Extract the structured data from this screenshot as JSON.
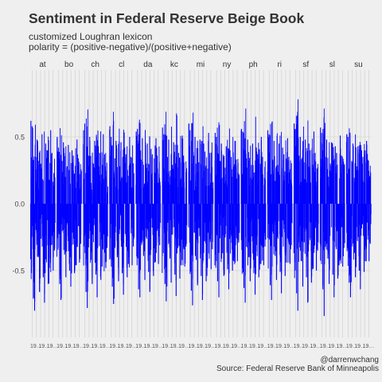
{
  "chart_data": {
    "type": "bar",
    "title": "Sentiment in Federal Reserve Beige Book",
    "subtitle_lines": [
      "customized Loughran lexicon",
      "polarity = (positive-negative)/(positive+negative)"
    ],
    "facets": [
      "at",
      "bo",
      "ch",
      "cl",
      "da",
      "kc",
      "mi",
      "ny",
      "ph",
      "ri",
      "sf",
      "sl",
      "su"
    ],
    "ylim": [
      -1,
      1
    ],
    "y_ticks": [
      0.5,
      0.0,
      -0.5
    ],
    "y_tick_labels": [
      "0.5",
      "0.0",
      "-0.5"
    ],
    "grid": true,
    "bar_color": "#0000ff",
    "values_per_facet": 130,
    "x_tick_placeholder": "19…",
    "caption_lines": [
      "@darrenwchang",
      "Source: Federal Reserve Bank of Minneapolis"
    ],
    "series": [
      {
        "values": [
          [
            0.62,
            0.58,
            -0.71,
            -0.8,
            0.35,
            0.48,
            -0.4,
            -0.66,
            0.3,
            0.52,
            -0.55,
            -0.74,
            0.45,
            0.4,
            -0.6,
            -0.48,
            0.55,
            0.38,
            -0.5,
            -0.35
          ],
          [
            0.5,
            0.42,
            -0.6,
            -0.72,
            0.32,
            0.46,
            -0.38,
            -0.55,
            0.28,
            0.44,
            -0.5,
            -0.62,
            0.4,
            0.36,
            -0.52,
            -0.46,
            0.48,
            0.34,
            -0.44,
            -0.3
          ],
          [
            0.55,
            0.6,
            -0.66,
            -0.78,
            0.36,
            0.5,
            -0.42,
            -0.6,
            0.3,
            0.47,
            -0.53,
            -0.7,
            0.43,
            0.38,
            -0.57,
            -0.47,
            0.52,
            0.37,
            -0.48,
            -0.33
          ],
          [
            0.58,
            0.5,
            -0.62,
            -0.75,
            0.34,
            0.47,
            -0.4,
            -0.58,
            0.28,
            0.46,
            -0.52,
            -0.68,
            0.42,
            0.37,
            -0.55,
            -0.45,
            0.5,
            0.35,
            -0.46,
            -0.32
          ],
          [
            0.54,
            0.56,
            -0.64,
            -0.7,
            0.33,
            0.49,
            -0.39,
            -0.57,
            0.3,
            0.45,
            -0.51,
            -0.66,
            0.41,
            0.37,
            -0.54,
            -0.44,
            0.49,
            0.36,
            -0.45,
            -0.31
          ],
          [
            0.57,
            0.52,
            -0.6,
            -0.73,
            0.35,
            0.48,
            -0.41,
            -0.59,
            0.29,
            0.46,
            -0.53,
            -0.69,
            0.44,
            0.38,
            -0.56,
            -0.46,
            0.51,
            0.36,
            -0.47,
            -0.32
          ],
          [
            0.6,
            0.55,
            -0.65,
            -0.76,
            0.36,
            0.5,
            -0.42,
            -0.61,
            0.31,
            0.48,
            -0.54,
            -0.72,
            0.45,
            0.39,
            -0.58,
            -0.48,
            0.53,
            0.38,
            -0.49,
            -0.34
          ],
          [
            0.53,
            0.5,
            -0.58,
            -0.7,
            0.32,
            0.45,
            -0.37,
            -0.54,
            0.27,
            0.43,
            -0.49,
            -0.64,
            0.4,
            0.35,
            -0.5,
            -0.43,
            0.47,
            0.33,
            -0.43,
            -0.29
          ],
          [
            0.56,
            0.54,
            -0.63,
            -0.74,
            0.34,
            0.48,
            -0.4,
            -0.58,
            0.29,
            0.45,
            -0.52,
            -0.68,
            0.42,
            0.37,
            -0.55,
            -0.45,
            0.5,
            0.35,
            -0.46,
            -0.32
          ],
          [
            0.55,
            0.52,
            -0.61,
            -0.72,
            0.33,
            0.47,
            -0.39,
            -0.57,
            0.29,
            0.45,
            -0.51,
            -0.67,
            0.42,
            0.37,
            -0.54,
            -0.44,
            0.49,
            0.35,
            -0.45,
            -0.31
          ],
          [
            0.6,
            0.56,
            -0.67,
            -0.8,
            0.36,
            0.5,
            -0.43,
            -0.62,
            0.31,
            0.48,
            -0.55,
            -0.74,
            0.45,
            0.4,
            -0.59,
            -0.49,
            0.54,
            0.38,
            -0.5,
            -0.35
          ],
          [
            0.57,
            0.53,
            -0.64,
            -0.84,
            0.35,
            0.48,
            -0.41,
            -0.6,
            0.3,
            0.46,
            -0.53,
            -0.7,
            0.43,
            0.38,
            -0.56,
            -0.46,
            0.51,
            0.36,
            -0.47,
            -0.33
          ],
          [
            0.52,
            0.5,
            -0.59,
            -0.7,
            0.32,
            0.45,
            -0.37,
            -0.55,
            0.28,
            0.43,
            -0.5,
            -0.64,
            0.4,
            0.35,
            -0.51,
            -0.43,
            0.47,
            0.33,
            -0.43,
            -0.3
          ]
        ]
      }
    ]
  }
}
